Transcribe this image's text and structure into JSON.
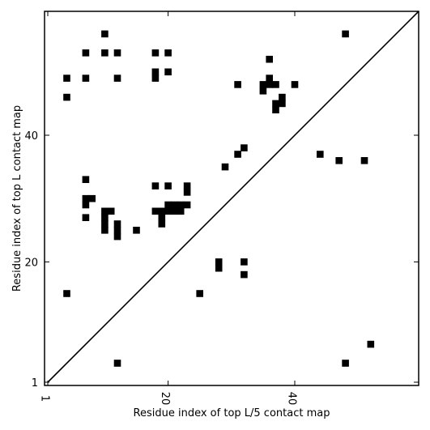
{
  "chart_data": {
    "type": "heatmap",
    "xlabel": "Residue index of top L/5 contact map",
    "ylabel": "Residue index of top L contact map",
    "xlim": [
      1,
      60
    ],
    "ylim": [
      1,
      60
    ],
    "x_ticks": [
      1,
      20,
      40
    ],
    "y_ticks": [
      1,
      20,
      40
    ],
    "diagonal": true,
    "color": "#000000",
    "cells": [
      [
        10,
        56
      ],
      [
        7,
        53
      ],
      [
        10,
        53
      ],
      [
        12,
        53
      ],
      [
        18,
        53
      ],
      [
        20,
        53
      ],
      [
        48,
        56
      ],
      [
        4,
        49
      ],
      [
        7,
        49
      ],
      [
        12,
        49
      ],
      [
        18,
        49
      ],
      [
        18,
        50
      ],
      [
        20,
        50
      ],
      [
        36,
        52
      ],
      [
        4,
        46
      ],
      [
        31,
        48
      ],
      [
        35,
        47
      ],
      [
        35,
        48
      ],
      [
        36,
        48
      ],
      [
        36,
        49
      ],
      [
        37,
        48
      ],
      [
        38,
        45
      ],
      [
        38,
        46
      ],
      [
        37,
        44
      ],
      [
        37,
        45
      ],
      [
        40,
        48
      ],
      [
        44,
        37
      ],
      [
        32,
        38
      ],
      [
        31,
        37
      ],
      [
        47,
        36
      ],
      [
        51,
        36
      ],
      [
        29,
        35
      ],
      [
        7,
        33
      ],
      [
        18,
        32
      ],
      [
        20,
        32
      ],
      [
        23,
        32
      ],
      [
        23,
        31
      ],
      [
        7,
        30
      ],
      [
        8,
        30
      ],
      [
        7,
        29
      ],
      [
        20,
        29
      ],
      [
        21,
        29
      ],
      [
        22,
        29
      ],
      [
        23,
        29
      ],
      [
        10,
        28
      ],
      [
        11,
        28
      ],
      [
        18,
        28
      ],
      [
        19,
        28
      ],
      [
        20,
        28
      ],
      [
        21,
        28
      ],
      [
        22,
        28
      ],
      [
        7,
        27
      ],
      [
        10,
        27
      ],
      [
        19,
        27
      ],
      [
        10,
        26
      ],
      [
        12,
        26
      ],
      [
        19,
        26
      ],
      [
        10,
        25
      ],
      [
        12,
        25
      ],
      [
        15,
        25
      ],
      [
        12,
        24
      ],
      [
        28,
        20
      ],
      [
        32,
        20
      ],
      [
        28,
        19
      ],
      [
        32,
        18
      ],
      [
        4,
        15
      ],
      [
        25,
        15
      ],
      [
        52,
        7
      ],
      [
        12,
        4
      ],
      [
        48,
        4
      ]
    ]
  }
}
